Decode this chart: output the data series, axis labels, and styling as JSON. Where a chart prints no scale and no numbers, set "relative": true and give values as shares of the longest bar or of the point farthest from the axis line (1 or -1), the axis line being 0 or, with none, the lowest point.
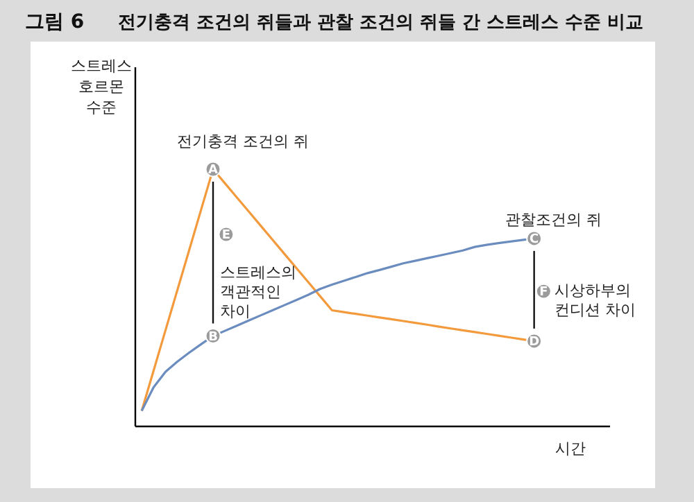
{
  "chart_data": {
    "type": "line",
    "relative": true,
    "title": "전기충격 조건의 쥐들과 관찰 조건의 쥐들 간 스트레스 수준 비교",
    "ylabel": "스트레스\n호르몬\n수준",
    "xlabel": "시간",
    "categories": [
      null,
      null,
      null,
      null,
      null,
      null,
      null,
      null,
      null,
      null,
      null,
      null,
      null,
      null,
      null,
      null,
      null,
      null,
      null,
      null,
      null,
      null,
      null,
      null,
      null,
      null,
      null,
      null,
      null,
      null,
      null,
      null,
      null,
      null
    ],
    "series": [
      {
        "color": "#f39a3d",
        "values": [
          0.058,
          0.215,
          0.372,
          0.529,
          0.686,
          0.843,
          1,
          0.945,
          0.89,
          0.835,
          0.78,
          0.725,
          0.67,
          0.615,
          0.56,
          0.505,
          0.45,
          0.443,
          0.436,
          0.429,
          0.422,
          0.415,
          0.408,
          0.401,
          0.394,
          0.386,
          0.379,
          0.372,
          0.365,
          0.358,
          0.351,
          0.344,
          0.337,
          0.33
        ]
      },
      {
        "color": "#6a8cbf",
        "values": [
          0.058,
          0.15,
          0.21,
          0.25,
          0.285,
          0.318,
          0.35,
          0.37,
          0.39,
          0.41,
          0.43,
          0.45,
          0.47,
          0.49,
          0.51,
          0.533,
          0.55,
          0.565,
          0.58,
          0.595,
          0.607,
          0.62,
          0.633,
          0.643,
          0.653,
          0.663,
          0.673,
          0.683,
          0.697,
          0.705,
          0.712,
          0.718,
          0.724,
          0.73
        ]
      }
    ],
    "annotations": [
      "A",
      "B",
      "C",
      "D",
      "E",
      "F",
      "전기충격 조건의 쥐",
      "관찰조건의 쥐",
      "스트레스의\n객관적인\n차이",
      "시상하부의\n컨디션 차이",
      "그림 6"
    ]
  }
}
